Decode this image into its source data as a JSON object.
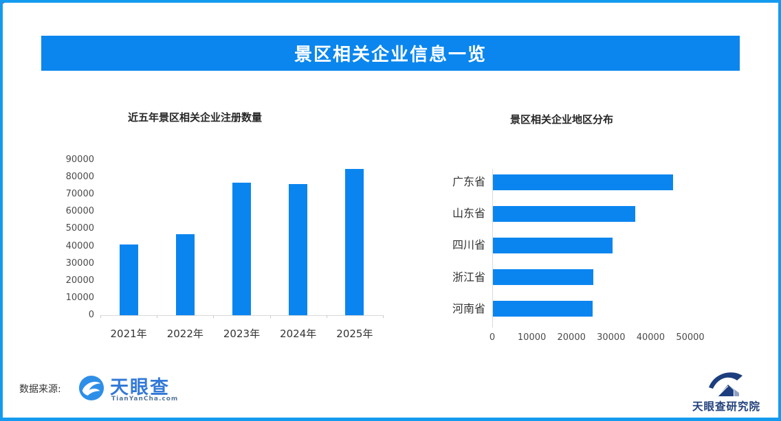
{
  "banner": {
    "title": "景区相关企业信息一览"
  },
  "colors": {
    "accent_blue": "#0a85f0",
    "banner_blue": "#0a86ee",
    "border_blue": "#149bf0",
    "brand_blue": "#3379d8",
    "navy": "#21407c"
  },
  "chart_data": [
    {
      "type": "bar",
      "orientation": "vertical",
      "title": "近五年景区相关企业注册数量",
      "categories": [
        "2021年",
        "2022年",
        "2023年",
        "2024年",
        "2025年"
      ],
      "values": [
        41000,
        47000,
        77000,
        76000,
        85000
      ],
      "xlabel": "",
      "ylabel": "",
      "ylim": [
        0,
        90000
      ],
      "yticks": [
        0,
        10000,
        20000,
        30000,
        40000,
        50000,
        60000,
        70000,
        80000,
        90000
      ],
      "grid": false,
      "legend": "none",
      "bar_color": "#0a85f0"
    },
    {
      "type": "bar",
      "orientation": "horizontal",
      "title": "景区相关企业地区分布",
      "categories": [
        "广东省",
        "山东省",
        "四川省",
        "浙江省",
        "河南省"
      ],
      "values": [
        45500,
        36000,
        30200,
        25400,
        25200
      ],
      "xlabel": "",
      "ylabel": "",
      "xlim": [
        0,
        50000
      ],
      "xticks": [
        0,
        10000,
        20000,
        30000,
        40000,
        50000
      ],
      "grid": false,
      "legend": "none",
      "bar_color": "#0a85f0"
    }
  ],
  "footer": {
    "source_label": "数据来源:",
    "brand": {
      "name": "天眼查",
      "domain": "TianYanCha.com"
    },
    "institute": "天眼查研究院"
  }
}
